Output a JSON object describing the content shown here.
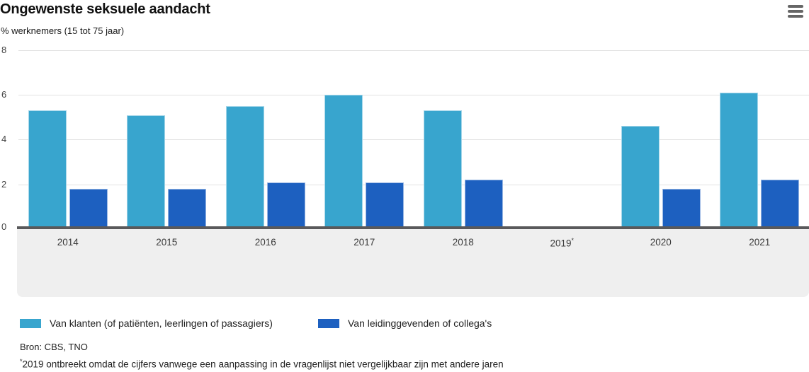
{
  "header": {
    "title": "Ongewenste seksuele aandacht",
    "subtitle": "% werknemers (15 tot 75 jaar)"
  },
  "menu": {
    "icon": "hamburger-menu-icon"
  },
  "chart_data": {
    "type": "bar",
    "title": "Ongewenste seksuele aandacht",
    "subtitle": "% werknemers (15 tot 75 jaar)",
    "categories": [
      "2014",
      "2015",
      "2016",
      "2017",
      "2018",
      "2019",
      "2020",
      "2021"
    ],
    "footnote_index": 5,
    "footnote_marker": "*",
    "series": [
      {
        "name": "Van klanten (of patiënten, leerlingen of passagiers)",
        "color": "#38a5ce",
        "values": [
          5.3,
          5.1,
          5.5,
          6.0,
          5.3,
          null,
          4.6,
          6.1
        ]
      },
      {
        "name": "Van leidinggevenden of collega's",
        "color": "#1d60c0",
        "values": [
          1.8,
          1.8,
          2.1,
          2.1,
          2.2,
          null,
          1.8,
          2.2
        ]
      }
    ],
    "xlabel": "",
    "ylabel": "% werknemers (15 tot 75 jaar)",
    "ylim": [
      0,
      8
    ],
    "yticks": [
      0,
      2,
      4,
      6,
      8
    ],
    "grid": true,
    "legend_position": "bottom",
    "colors": {
      "gridline": "#e2e2e2",
      "axis_line": "#59595b",
      "x_band": "#efefef"
    }
  },
  "footer": {
    "source": "Bron: CBS, TNO",
    "footnote_marker": "*",
    "footnote": "2019 ontbreekt omdat de cijfers vanwege een aanpassing in de vragenlijst niet vergelijkbaar zijn met andere jaren"
  }
}
